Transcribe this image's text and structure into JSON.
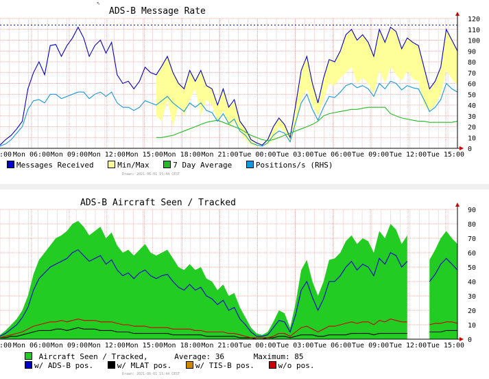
{
  "chart_data": [
    {
      "type": "line",
      "title": "ADS-B Message Rate",
      "x_tick_labels": [
        "Mon 06:00",
        "Mon 09:00",
        "Mon 12:00",
        "Mon 15:00",
        "Mon 18:00",
        "Mon 21:00",
        "Tue 00:00",
        "Tue 03:00",
        "Tue 06:00",
        "Tue 09:00",
        "Tue 12:00",
        "Tue 15:00"
      ],
      "x_partial_label": ":00",
      "y_right_ticks": [
        0,
        10,
        20,
        30,
        40,
        50,
        60,
        70,
        80,
        90,
        100,
        110,
        120
      ],
      "ylim": [
        0,
        120
      ],
      "dotted_max_line": 114,
      "grid": true,
      "legend_placement": "bottom",
      "series": [
        {
          "name": "Messages Received",
          "color": "#0000cc",
          "type": "line",
          "values": [
            3,
            8,
            12,
            18,
            25,
            55,
            70,
            80,
            68,
            95,
            96,
            85,
            95,
            102,
            112,
            102,
            85,
            95,
            100,
            88,
            98,
            68,
            60,
            62,
            55,
            62,
            75,
            70,
            68,
            76,
            85,
            70,
            60,
            55,
            72,
            62,
            72,
            58,
            55,
            40,
            55,
            38,
            45,
            25,
            18,
            8,
            5,
            3,
            8,
            20,
            28,
            22,
            10,
            40,
            72,
            85,
            60,
            42,
            65,
            82,
            80,
            90,
            105,
            110,
            100,
            105,
            98,
            85,
            110,
            98,
            112,
            108,
            92,
            102,
            98,
            95,
            75,
            55,
            62,
            75,
            110,
            100,
            90
          ]
        },
        {
          "name": "Min/Max",
          "color": "#ffff99",
          "type": "band",
          "lower": [
            null,
            null,
            null,
            null,
            null,
            null,
            null,
            null,
            null,
            null,
            null,
            null,
            null,
            null,
            null,
            null,
            null,
            null,
            null,
            null,
            null,
            null,
            null,
            null,
            null,
            null,
            null,
            null,
            30,
            25,
            45,
            20,
            40,
            30,
            45,
            55,
            30,
            45,
            40,
            25,
            35,
            20,
            25,
            15,
            8,
            3,
            2,
            2,
            3,
            8,
            20,
            15,
            5,
            20,
            45,
            55,
            40,
            30,
            45,
            60,
            58,
            65,
            70,
            75,
            60,
            65,
            60,
            50,
            72,
            60,
            75,
            68,
            62,
            72,
            64,
            62,
            40,
            35,
            40,
            50,
            72,
            64,
            58
          ]
        },
        {
          "name": "7 Day Average",
          "color": "#22bb22",
          "type": "line",
          "values": [
            null,
            null,
            null,
            null,
            null,
            null,
            null,
            null,
            null,
            null,
            null,
            null,
            null,
            null,
            null,
            null,
            null,
            null,
            null,
            null,
            null,
            null,
            null,
            null,
            null,
            null,
            null,
            null,
            10,
            10,
            11,
            12,
            14,
            16,
            18,
            20,
            22,
            24,
            25,
            26,
            24,
            22,
            20,
            18,
            15,
            12,
            10,
            8,
            7,
            8,
            10,
            12,
            14,
            16,
            18,
            20,
            22,
            25,
            30,
            32,
            33,
            34,
            35,
            36,
            36,
            37,
            38,
            38,
            38,
            38,
            32,
            30,
            28,
            27,
            26,
            25,
            25,
            24,
            24,
            24,
            24,
            24,
            25
          ]
        },
        {
          "name": "Positions/s (RHS)",
          "color": "#1199dd",
          "type": "line",
          "values": [
            2,
            4,
            8,
            14,
            20,
            36,
            44,
            45,
            42,
            50,
            50,
            46,
            48,
            50,
            52,
            52,
            46,
            50,
            52,
            48,
            52,
            42,
            38,
            38,
            35,
            38,
            44,
            42,
            40,
            44,
            48,
            42,
            38,
            34,
            42,
            38,
            42,
            35,
            33,
            25,
            32,
            23,
            27,
            16,
            12,
            5,
            3,
            2,
            5,
            12,
            16,
            14,
            6,
            24,
            42,
            50,
            36,
            26,
            38,
            48,
            47,
            52,
            58,
            60,
            56,
            58,
            55,
            48,
            60,
            55,
            62,
            60,
            54,
            58,
            56,
            55,
            45,
            34,
            38,
            45,
            60,
            55,
            52
          ]
        }
      ]
    },
    {
      "type": "area",
      "title": "ADS-B Aircraft Seen / Tracked",
      "x_tick_labels": [
        "Mon 06:00",
        "Mon 09:00",
        "Mon 12:00",
        "Mon 15:00",
        "Mon 18:00",
        "Mon 21:00",
        "Tue 00:00",
        "Tue 03:00",
        "Tue 06:00",
        "Tue 09:00",
        "Tue 12:00",
        "Tue 15:00"
      ],
      "x_partial_label": ":00",
      "y_right_ticks": [
        0,
        10,
        20,
        30,
        40,
        50,
        60,
        70,
        80,
        90
      ],
      "ylim": [
        0,
        90
      ],
      "grid": true,
      "legend_placement": "bottom",
      "series": [
        {
          "name": "Aircraft Seen / Tracked,",
          "color": "#22cc22",
          "type": "area",
          "values": [
            3,
            6,
            10,
            14,
            20,
            30,
            45,
            55,
            60,
            65,
            70,
            72,
            75,
            80,
            82,
            78,
            72,
            75,
            78,
            70,
            74,
            65,
            60,
            62,
            58,
            62,
            66,
            60,
            58,
            60,
            62,
            56,
            50,
            48,
            52,
            48,
            50,
            42,
            40,
            34,
            38,
            30,
            32,
            22,
            15,
            8,
            4,
            3,
            5,
            12,
            20,
            18,
            8,
            25,
            48,
            55,
            40,
            30,
            40,
            55,
            56,
            60,
            68,
            72,
            66,
            70,
            68,
            60,
            75,
            70,
            80,
            76,
            66,
            72,
            null,
            null,
            null,
            55,
            62,
            70,
            75,
            70,
            66
          ]
        },
        {
          "name": "w/ ADS-B pos.",
          "color": "#0000cc",
          "type": "line",
          "values": [
            2,
            4,
            7,
            10,
            15,
            22,
            34,
            42,
            46,
            50,
            52,
            54,
            56,
            60,
            62,
            58,
            54,
            56,
            58,
            52,
            55,
            48,
            44,
            46,
            42,
            46,
            48,
            44,
            42,
            44,
            45,
            40,
            36,
            34,
            38,
            34,
            36,
            30,
            28,
            24,
            27,
            20,
            22,
            14,
            10,
            5,
            2,
            2,
            3,
            8,
            13,
            12,
            5,
            17,
            34,
            40,
            29,
            20,
            28,
            40,
            40,
            44,
            50,
            54,
            48,
            52,
            50,
            44,
            56,
            52,
            60,
            58,
            50,
            54,
            null,
            null,
            null,
            40,
            45,
            52,
            56,
            52,
            48
          ]
        },
        {
          "name": "w/ MLAT pos.",
          "color": "#000000",
          "type": "line",
          "values": [
            1,
            1,
            2,
            2,
            3,
            4,
            5,
            6,
            6,
            6,
            7,
            7,
            6,
            7,
            8,
            7,
            7,
            7,
            6,
            6,
            6,
            5,
            5,
            5,
            4,
            4,
            4,
            4,
            4,
            4,
            4,
            3,
            3,
            3,
            3,
            3,
            3,
            2,
            2,
            2,
            2,
            2,
            2,
            1,
            1,
            1,
            0,
            0,
            1,
            1,
            2,
            2,
            1,
            2,
            3,
            3,
            3,
            2,
            2,
            3,
            3,
            3,
            3,
            4,
            4,
            4,
            4,
            3,
            4,
            4,
            4,
            4,
            4,
            4,
            null,
            null,
            null,
            5,
            5,
            5,
            6,
            6,
            6
          ]
        },
        {
          "name": "w/ TIS-B pos.",
          "color": "#cc8800",
          "type": "line",
          "values": [
            0,
            0,
            0,
            0,
            0,
            0,
            0,
            0,
            0,
            0,
            0,
            0,
            0,
            0,
            0,
            0,
            0,
            0,
            0,
            0,
            0,
            0,
            0,
            0,
            0,
            0,
            0,
            0,
            0,
            0,
            0,
            0,
            0,
            0,
            0,
            0,
            0,
            0,
            0,
            0,
            0,
            0,
            0,
            0,
            0,
            0,
            0,
            0,
            0,
            0,
            0,
            0,
            0,
            0,
            0,
            0,
            0,
            0,
            0,
            0,
            0,
            0,
            0,
            0,
            0,
            0,
            0,
            0,
            0,
            0,
            0,
            0,
            0,
            0,
            null,
            null,
            null,
            0,
            0,
            0,
            0,
            0,
            0
          ]
        },
        {
          "name": "w/o pos.",
          "color": "#cc0000",
          "type": "line",
          "values": [
            1,
            2,
            3,
            4,
            5,
            7,
            9,
            10,
            11,
            12,
            12,
            13,
            12,
            13,
            14,
            13,
            13,
            13,
            12,
            12,
            12,
            11,
            10,
            10,
            9,
            9,
            9,
            8,
            8,
            8,
            8,
            7,
            7,
            7,
            7,
            6,
            6,
            5,
            5,
            5,
            5,
            4,
            4,
            3,
            2,
            1,
            1,
            1,
            1,
            2,
            4,
            4,
            2,
            5,
            8,
            9,
            7,
            5,
            7,
            9,
            9,
            10,
            11,
            12,
            11,
            12,
            12,
            10,
            13,
            12,
            14,
            13,
            12,
            12,
            null,
            null,
            null,
            10,
            11,
            11,
            12,
            12,
            11
          ]
        }
      ],
      "stats": {
        "average_label": "Average:",
        "average": "36",
        "maximum_label": "Maximum:",
        "maximum": "85"
      }
    }
  ],
  "drawn_1": "Drawn: 2021-06-01 15:44 CEST",
  "drawn_2": "Drawn: 2021-06-01 15:44 CEST",
  "cursor_glyph": "⇖"
}
